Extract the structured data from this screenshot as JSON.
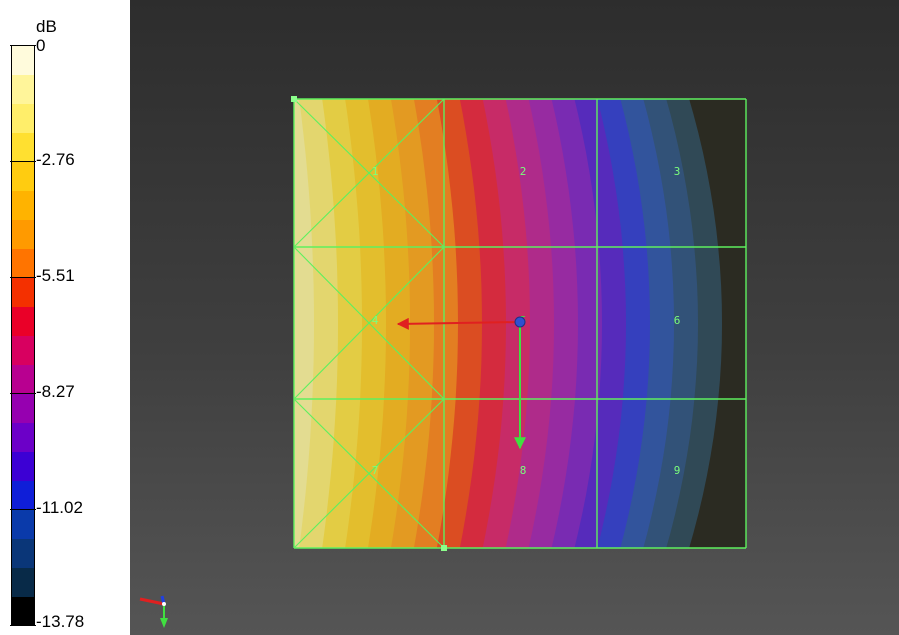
{
  "legend": {
    "unit": "dB",
    "ticks": [
      {
        "value": "0",
        "frac": 0
      },
      {
        "value": "-2.76",
        "frac": 0.2
      },
      {
        "value": "-5.51",
        "frac": 0.4
      },
      {
        "value": "-8.27",
        "frac": 0.6
      },
      {
        "value": "-11.02",
        "frac": 0.8
      },
      {
        "value": "-13.78",
        "frac": 1
      }
    ],
    "color_bands": [
      "#fffbdc",
      "#fff59a",
      "#ffee6a",
      "#ffe030",
      "#ffcc10",
      "#ffb300",
      "#ff9a00",
      "#ff7400",
      "#f43000",
      "#ea0028",
      "#d80060",
      "#b80090",
      "#9600b0",
      "#6c00c8",
      "#3c00d4",
      "#0f1ed8",
      "#0a3aaa",
      "#0a3678",
      "#082a48",
      "#000000"
    ],
    "min": -13.78,
    "max": 0
  },
  "viewport": {
    "background": "dark grey gradient",
    "grid_line_color": "#5ef05e",
    "node_labels": [
      "1",
      "2",
      "3",
      "4",
      "5",
      "6",
      "7",
      "8",
      "9"
    ],
    "contour_levels": 20,
    "axes_triad": {
      "icon": "xyz-axes-icon"
    },
    "arrows": [
      {
        "name": "x-direction-arrow",
        "color": "#e02020"
      },
      {
        "name": "y-direction-arrow",
        "color": "#40e040"
      }
    ]
  }
}
